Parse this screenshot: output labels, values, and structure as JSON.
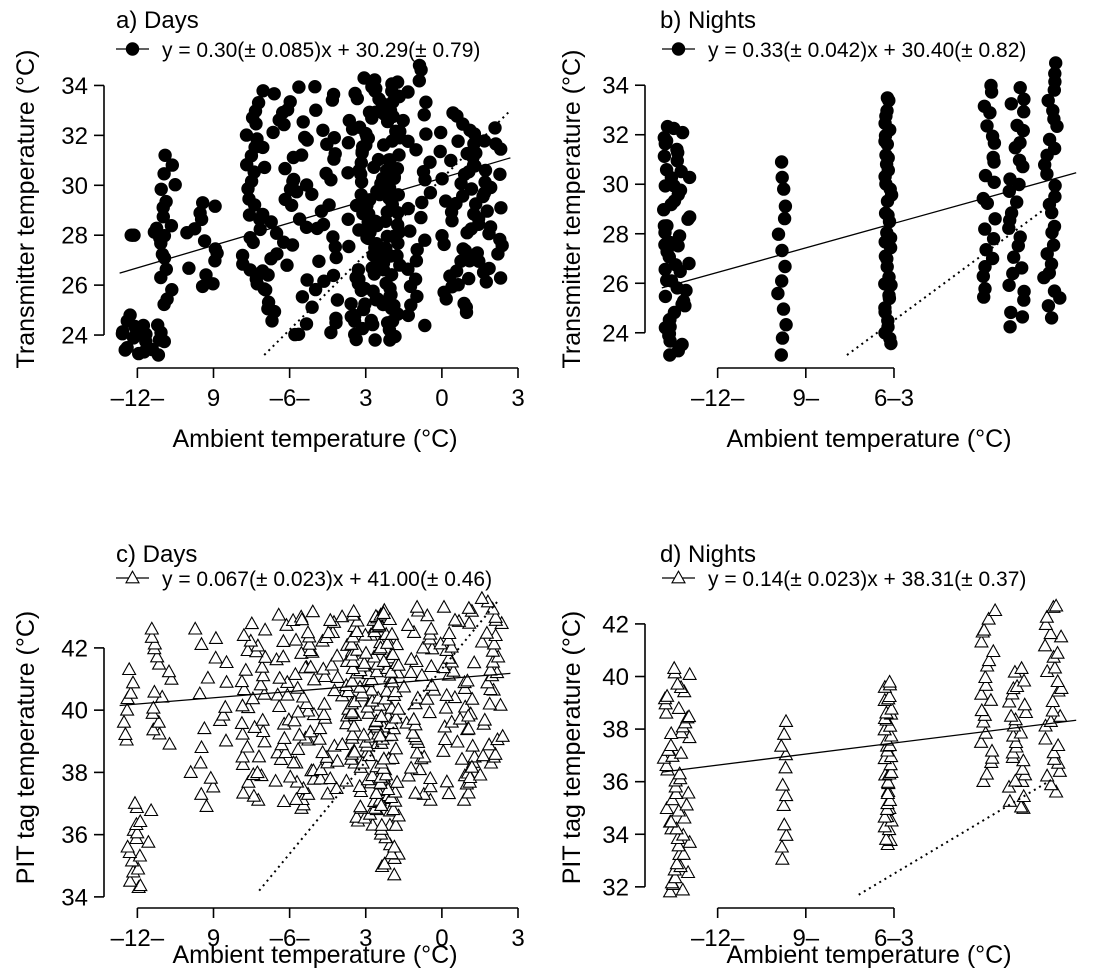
{
  "chart_data": [
    {
      "id": "a",
      "type": "scatter",
      "title": "a) Days",
      "equation": "y = 0.30(± 0.085)x + 30.29(± 0.79)",
      "legend_marker": "filled-circle",
      "ylabel": "Transmitter temperature (°C)",
      "xlabel": "Ambient temperature (°C)",
      "ylim": [
        23,
        35.1
      ],
      "yticks": [
        24,
        26,
        28,
        30,
        32,
        34
      ],
      "xlim": [
        -13,
        3
      ],
      "xticks": [
        -12,
        -9,
        -6,
        -3,
        0,
        3
      ],
      "xtick_labels": [
        "–12–",
        "9",
        "–6–",
        "3",
        "0",
        "3"
      ],
      "fit": {
        "slope": 0.3,
        "intercept": 30.29
      },
      "reference_line": {
        "x": [
          -7,
          2.7
        ],
        "y": [
          23.2,
          33.0
        ]
      },
      "seed": 11,
      "clusters": [
        {
          "x": -12.3,
          "spread": 0.35,
          "y": [
            23.4,
            24.8
          ],
          "n": 8
        },
        {
          "x": -12.2,
          "spread": 0.2,
          "y": [
            28,
            28
          ],
          "n": 2
        },
        {
          "x": -11.5,
          "spread": 0.6,
          "y": [
            23.2,
            24.4
          ],
          "n": 12
        },
        {
          "x": -11.3,
          "spread": 0.4,
          "y": [
            27.9,
            28.3
          ],
          "n": 3
        },
        {
          "x": -10.8,
          "spread": 0.3,
          "y": [
            25.2,
            31.2
          ],
          "n": 18
        },
        {
          "x": -9.5,
          "spread": 0.7,
          "y": [
            25.9,
            29.4
          ],
          "n": 14
        },
        {
          "x": -7.5,
          "spread": 0.4,
          "y": [
            26,
            33.4
          ],
          "n": 24
        },
        {
          "x": -6.2,
          "spread": 0.9,
          "y": [
            23.9,
            34
          ],
          "n": 45
        },
        {
          "x": -4.8,
          "spread": 0.7,
          "y": [
            24.1,
            34
          ],
          "n": 30
        },
        {
          "x": -3,
          "spread": 0.7,
          "y": [
            23.8,
            34.3
          ],
          "n": 80
        },
        {
          "x": -2,
          "spread": 0.35,
          "y": [
            23.8,
            34.2
          ],
          "n": 55
        },
        {
          "x": -1,
          "spread": 0.55,
          "y": [
            24.3,
            34.9
          ],
          "n": 28
        },
        {
          "x": 0.6,
          "spread": 0.7,
          "y": [
            24.8,
            32.9
          ],
          "n": 40
        },
        {
          "x": 1.8,
          "spread": 0.7,
          "y": [
            26.1,
            32.3
          ],
          "n": 30
        }
      ]
    },
    {
      "id": "b",
      "type": "scatter",
      "title": "b) Nights",
      "equation": "y = 0.33(± 0.042)x + 30.40(± 0.82)",
      "legend_marker": "filled-circle",
      "ylabel": "Transmitter temperature (°C)",
      "xlabel": "Ambient temperature (°C)",
      "ylim": [
        22.9,
        35.1
      ],
      "yticks": [
        24,
        26,
        28,
        30,
        32,
        34
      ],
      "xlim": [
        -14.2,
        0.5
      ],
      "xticks": [
        -12,
        -9,
        -6
      ],
      "xtick_labels": [
        "–12–",
        "9–",
        "6–3"
      ],
      "fit": {
        "slope": 0.33,
        "intercept": 30.4
      },
      "reference_line": {
        "x": [
          -7.6,
          -0.3
        ],
        "y": [
          23.1,
          29.5
        ]
      },
      "seed": 23,
      "clusters": [
        {
          "x": -13.4,
          "spread": 0.45,
          "y": [
            23.1,
            32.4
          ],
          "n": 55
        },
        {
          "x": -9.8,
          "spread": 0.15,
          "y": [
            23.1,
            30.9
          ],
          "n": 14
        },
        {
          "x": -6.2,
          "spread": 0.12,
          "y": [
            23.5,
            33.6
          ],
          "n": 40
        },
        {
          "x": -2.8,
          "spread": 0.25,
          "y": [
            25.4,
            34.1
          ],
          "n": 22
        },
        {
          "x": -1.8,
          "spread": 0.3,
          "y": [
            24.2,
            33.9
          ],
          "n": 28
        },
        {
          "x": -0.6,
          "spread": 0.3,
          "y": [
            24.6,
            34.9
          ],
          "n": 28
        }
      ]
    },
    {
      "id": "c",
      "type": "scatter",
      "title": "c) Days",
      "equation": "y = 0.067(± 0.023)x + 41.00(± 0.46)",
      "legend_marker": "open-triangle",
      "ylabel": "PIT tag temperature (°C)",
      "xlabel": "Ambient temperature (°C)",
      "ylim": [
        33.9,
        43.7
      ],
      "yticks": [
        34,
        36,
        38,
        40,
        42
      ],
      "xlim": [
        -13,
        3
      ],
      "xticks": [
        -12,
        -9,
        -6,
        -3,
        0,
        3
      ],
      "xtick_labels": [
        "–12–",
        "9",
        "–6–",
        "3",
        "0",
        "3"
      ],
      "fit": {
        "slope": 0.067,
        "intercept": 41.0
      },
      "reference_line": {
        "x": [
          -7.2,
          2.2
        ],
        "y": [
          34.2,
          43.5
        ]
      },
      "seed": 37,
      "clusters": [
        {
          "x": -12.3,
          "spread": 0.25,
          "y": [
            39,
            41.3
          ],
          "n": 8
        },
        {
          "x": -11.8,
          "spread": 0.6,
          "y": [
            34.2,
            37
          ],
          "n": 18
        },
        {
          "x": -11,
          "spread": 0.5,
          "y": [
            38.9,
            42.6
          ],
          "n": 16
        },
        {
          "x": -9.2,
          "spread": 0.8,
          "y": [
            36.9,
            42.6
          ],
          "n": 20
        },
        {
          "x": -7.4,
          "spread": 0.5,
          "y": [
            37.1,
            42.8
          ],
          "n": 35
        },
        {
          "x": -5.8,
          "spread": 0.8,
          "y": [
            36.8,
            43.2
          ],
          "n": 60
        },
        {
          "x": -4.2,
          "spread": 0.7,
          "y": [
            37.3,
            43
          ],
          "n": 40
        },
        {
          "x": -2.8,
          "spread": 0.8,
          "y": [
            36.3,
            43.2
          ],
          "n": 110
        },
        {
          "x": -2.1,
          "spread": 0.4,
          "y": [
            34.7,
            43.1
          ],
          "n": 60
        },
        {
          "x": -0.9,
          "spread": 0.6,
          "y": [
            37.1,
            43.3
          ],
          "n": 40
        },
        {
          "x": 0.6,
          "spread": 0.7,
          "y": [
            37.1,
            43.3
          ],
          "n": 40
        },
        {
          "x": 1.7,
          "spread": 0.7,
          "y": [
            37.6,
            43.6
          ],
          "n": 40
        }
      ]
    },
    {
      "id": "d",
      "type": "scatter",
      "title": "d) Nights",
      "equation": "y = 0.14(± 0.023)x + 38.31(± 0.37)",
      "legend_marker": "open-triangle",
      "ylabel": "PIT tag temperature (°C)",
      "xlabel": "Ambient temperature (°C)",
      "ylim": [
        31.5,
        43.1
      ],
      "yticks": [
        32,
        34,
        36,
        38,
        40,
        42
      ],
      "xlim": [
        -14.2,
        0.5
      ],
      "xticks": [
        -12,
        -9,
        -6
      ],
      "xtick_labels": [
        "–12–",
        "9–",
        "6–3"
      ],
      "fit": {
        "slope": 0.14,
        "intercept": 38.31
      },
      "reference_line": {
        "x": [
          -7.2,
          -0.6
        ],
        "y": [
          31.7,
          36.1
        ]
      },
      "seed": 51,
      "clusters": [
        {
          "x": -13.4,
          "spread": 0.45,
          "y": [
            31.7,
            40.3
          ],
          "n": 55
        },
        {
          "x": -9.8,
          "spread": 0.15,
          "y": [
            33,
            38.4
          ],
          "n": 12
        },
        {
          "x": -6.2,
          "spread": 0.12,
          "y": [
            33.6,
            39.8
          ],
          "n": 40
        },
        {
          "x": -2.8,
          "spread": 0.25,
          "y": [
            36,
            42.5
          ],
          "n": 22
        },
        {
          "x": -1.8,
          "spread": 0.3,
          "y": [
            34.9,
            40.3
          ],
          "n": 28
        },
        {
          "x": -0.6,
          "spread": 0.3,
          "y": [
            35.6,
            42.8
          ],
          "n": 28
        }
      ]
    }
  ]
}
